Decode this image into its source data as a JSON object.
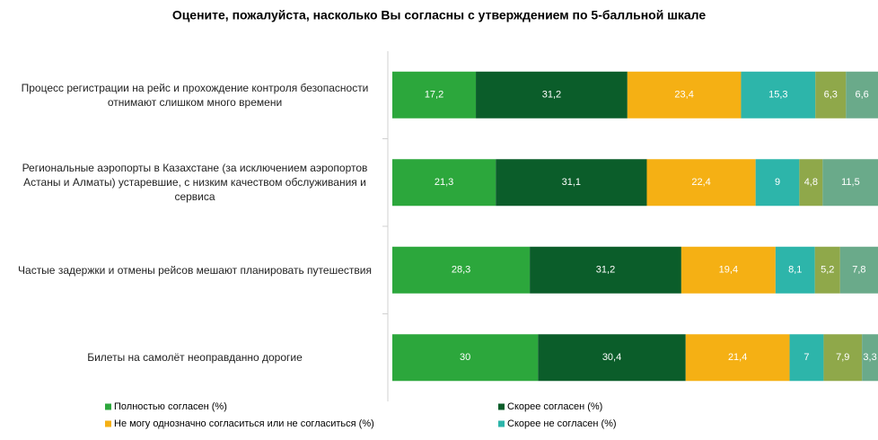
{
  "chart_data": {
    "type": "stacked-bar-horizontal",
    "title": "Оцените, пожалуйста, насколько Вы согласны с утверждением по 5-балльной шкале",
    "categories": [
      "Процесс регистрации на рейс и прохождение контроля безопасности отнимают слишком много времени",
      "Региональные аэропорты в Казахстане (за исключением аэропортов Астаны и Алматы) устаревшие, с низким качеством обслуживания и сервиса",
      "Частые задержки и отмены рейсов мешают планировать путешествия",
      "Билеты на самолёт неоправданно дорогие"
    ],
    "xlim": [
      0,
      100
    ],
    "series": [
      {
        "name": "Полностью согласен (%)",
        "color": "#2ca73c",
        "values": [
          17.2,
          21.3,
          28.3,
          30
        ],
        "value_labels": [
          "17,2",
          "21,3",
          "28,3",
          "30"
        ]
      },
      {
        "name": "Скорее согласен (%)",
        "color": "#0b5d2a",
        "values": [
          31.2,
          31.1,
          31.2,
          30.4
        ],
        "value_labels": [
          "31,2",
          "31,1",
          "31,2",
          "30,4"
        ]
      },
      {
        "name": "Не могу однозначно согласиться или не согласиться (%)",
        "color": "#f5b014",
        "values": [
          23.4,
          22.4,
          19.4,
          21.4
        ],
        "value_labels": [
          "23,4",
          "22,4",
          "19,4",
          "21,4"
        ]
      },
      {
        "name": "Скорее не согласен (%)",
        "color": "#2db5aa",
        "values": [
          15.3,
          9,
          8.1,
          7
        ],
        "value_labels": [
          "15,3",
          "9",
          "8,1",
          "7"
        ]
      },
      {
        "name": null,
        "color": "#8fa84a",
        "values": [
          6.3,
          4.8,
          5.2,
          7.9
        ],
        "value_labels": [
          "6,3",
          "4,8",
          "5,2",
          "7,9"
        ]
      },
      {
        "name": null,
        "color": "#6aaa8a",
        "values": [
          6.6,
          11.5,
          7.8,
          3.3
        ],
        "value_labels": [
          "6,6",
          "11,5",
          "7,8",
          "3,3"
        ]
      }
    ]
  }
}
